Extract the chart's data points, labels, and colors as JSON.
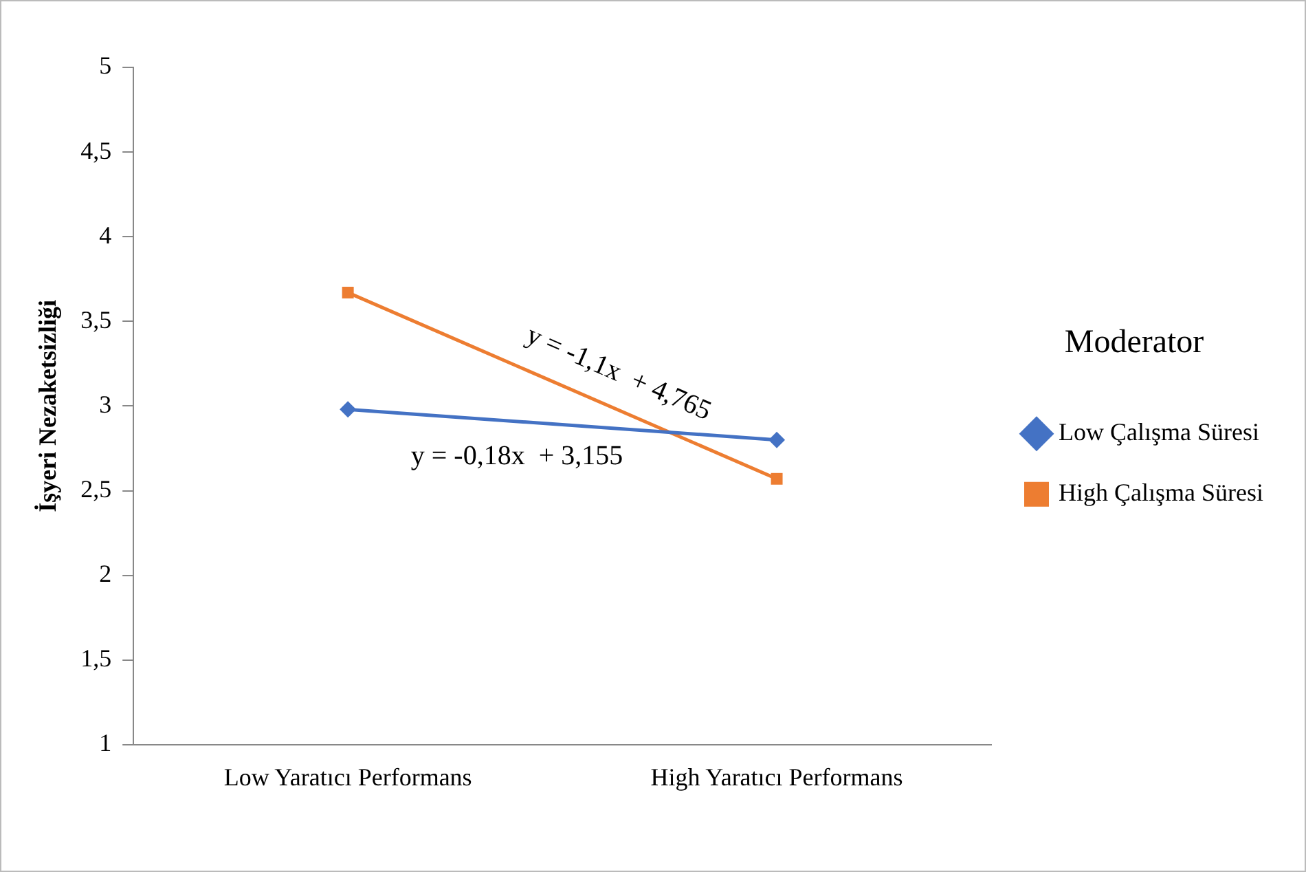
{
  "chart_data": {
    "type": "line",
    "ylabel": "İşyeri Nezaketsizliği",
    "legend_title": "Moderator",
    "categories": [
      "Low Yaratıcı Performans",
      "High Yaratıcı Performans"
    ],
    "series": [
      {
        "name": "Low Çalışma Süresi",
        "color": "#4472c4",
        "values": [
          2.98,
          2.8
        ],
        "marker": "diamond"
      },
      {
        "name": "High Çalışma Süresi",
        "color": "#ed7d31",
        "values": [
          3.67,
          2.57
        ],
        "marker": "square"
      }
    ],
    "annotations": [
      "y = -0,18x  + 3,155",
      "y = -1,1x  + 4,765"
    ],
    "ylim": [
      1,
      5
    ],
    "yticks": [
      1,
      {
        "value": 1.5,
        "label": "1,5"
      },
      2,
      {
        "value": 2.5,
        "label": "2,5"
      },
      3,
      {
        "value": 3.5,
        "label": "3,5"
      },
      4,
      {
        "value": 4.5,
        "label": "4,5"
      },
      5
    ],
    "grid": false,
    "legend": "right",
    "line_style": "solid"
  }
}
